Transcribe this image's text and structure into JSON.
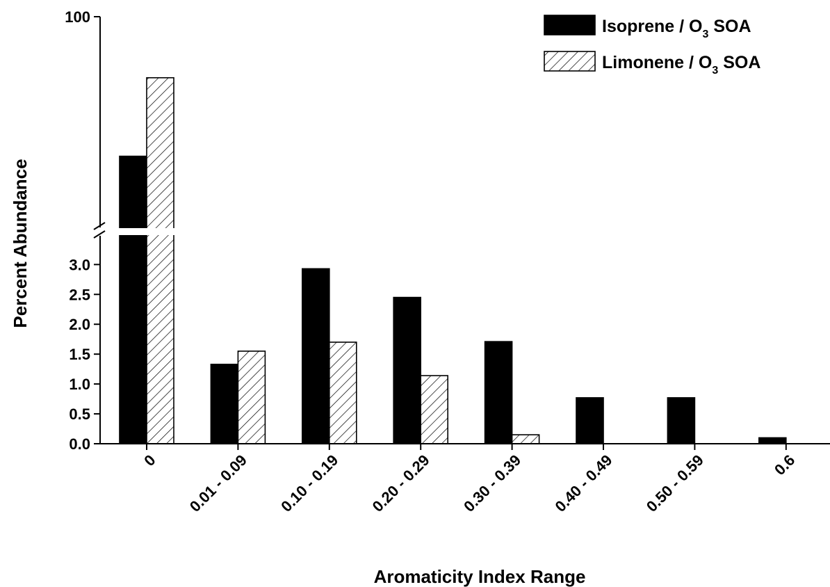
{
  "chart_data": {
    "type": "bar",
    "xlabel": "Aromaticity Index Range",
    "ylabel": "Percent Abundance",
    "categories": [
      "0",
      "0.01 - 0.09",
      "0.10 - 0.19",
      "0.20 - 0.29",
      "0.30 - 0.39",
      "0.40 - 0.49",
      "0.50 - 0.59",
      "0.6"
    ],
    "series": [
      {
        "name": "Isoprene / O3 SOA",
        "legend_parts": [
          "Isoprene / O",
          "3",
          " SOA"
        ],
        "fill": "solid",
        "color": "#000000",
        "values": [
          90.4,
          1.33,
          2.93,
          2.45,
          1.71,
          0.77,
          0.77,
          0.1
        ]
      },
      {
        "name": "Limonene / O3 SOA",
        "legend_parts": [
          "Limonene / O",
          "3",
          " SOA"
        ],
        "fill": "diagonal-hatch",
        "color": "#000000",
        "values": [
          95.8,
          1.55,
          1.7,
          1.14,
          0.15,
          0,
          0,
          0
        ]
      }
    ],
    "y_axis": {
      "type": "broken",
      "lower_range": [
        0,
        3.4
      ],
      "lower_ticks": [
        "0.0",
        "0.5",
        "1.0",
        "1.5",
        "2.0",
        "2.5",
        "3.0"
      ],
      "upper_range": [
        85.5,
        100
      ],
      "upper_ticks": [
        "100"
      ]
    },
    "legend_position": "top-right",
    "grid": false
  }
}
